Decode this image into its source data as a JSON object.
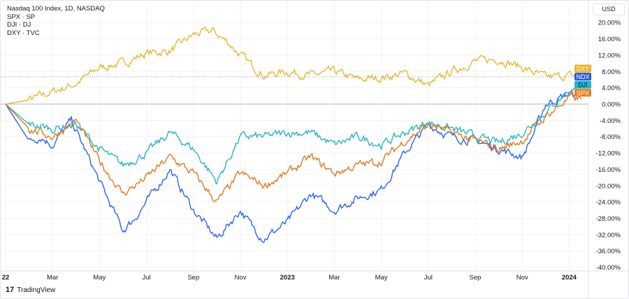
{
  "legend": [
    "Nasdaq 100 Index, 1D, NASDAQ",
    "SPX · SP",
    "DJI · DJ",
    "DXY · TVC"
  ],
  "currency_button": "USD",
  "branding": "TradingView",
  "chart_data": {
    "type": "line",
    "title": "Nasdaq 100 Index, 1D, NASDAQ",
    "x_ticks": [
      {
        "m": 0,
        "label": "22"
      },
      {
        "m": 2,
        "label": "Mar"
      },
      {
        "m": 4,
        "label": "May"
      },
      {
        "m": 6,
        "label": "Jul"
      },
      {
        "m": 8,
        "label": "Sep"
      },
      {
        "m": 10,
        "label": "Nov"
      },
      {
        "m": 12,
        "label": "2023"
      },
      {
        "m": 14,
        "label": "Mar"
      },
      {
        "m": 16,
        "label": "May"
      },
      {
        "m": 18,
        "label": "Jul"
      },
      {
        "m": 20,
        "label": "Sep"
      },
      {
        "m": 22,
        "label": "Nov"
      },
      {
        "m": 24,
        "label": "2024"
      }
    ],
    "y_ticks": [
      "20.00%",
      "16.00%",
      "12.00%",
      "8.00%",
      "4.00%",
      "0.00%",
      "-4.00%",
      "-8.00%",
      "-12.00%",
      "-16.00%",
      "-20.00%",
      "-24.00%",
      "-28.00%",
      "-32.00%",
      "-36.00%",
      "-40.00%"
    ],
    "ylim": [
      -40,
      20
    ],
    "x_unit": "months since Jan 2022",
    "series": [
      {
        "name": "DXY",
        "color": "#e8b830",
        "label_bg": "#f0b323",
        "points": [
          [
            0,
            0
          ],
          [
            1,
            1
          ],
          [
            2,
            3
          ],
          [
            3,
            5
          ],
          [
            4,
            9
          ],
          [
            5,
            10
          ],
          [
            6,
            12.5
          ],
          [
            7,
            13
          ],
          [
            8,
            17
          ],
          [
            8.8,
            18
          ],
          [
            9.5,
            15
          ],
          [
            10,
            12
          ],
          [
            11,
            7
          ],
          [
            12,
            8
          ],
          [
            13,
            7
          ],
          [
            14,
            8
          ],
          [
            15,
            6
          ],
          [
            16,
            6.5
          ],
          [
            17,
            7.5
          ],
          [
            18,
            4.5
          ],
          [
            19,
            8
          ],
          [
            20,
            10.5
          ],
          [
            21,
            11
          ],
          [
            22,
            9
          ],
          [
            23,
            6.5
          ],
          [
            24,
            7
          ],
          [
            24.5,
            6.7
          ]
        ]
      },
      {
        "name": "NDX",
        "color": "#2962ff",
        "label_bg": "#2a5bd7",
        "points": [
          [
            0,
            0
          ],
          [
            1,
            -9
          ],
          [
            1.5,
            -8
          ],
          [
            2,
            -10
          ],
          [
            2.8,
            -4
          ],
          [
            4,
            -19
          ],
          [
            5,
            -31
          ],
          [
            5.5,
            -28
          ],
          [
            6,
            -24
          ],
          [
            7,
            -16
          ],
          [
            8,
            -26
          ],
          [
            9,
            -33
          ],
          [
            10,
            -26
          ],
          [
            10.5,
            -30
          ],
          [
            11,
            -33
          ],
          [
            12,
            -29
          ],
          [
            13,
            -22
          ],
          [
            14,
            -26
          ],
          [
            15,
            -23
          ],
          [
            16,
            -21
          ],
          [
            17,
            -12
          ],
          [
            18,
            -5
          ],
          [
            19,
            -8
          ],
          [
            20,
            -9
          ],
          [
            21,
            -11
          ],
          [
            22,
            -13
          ],
          [
            22.5,
            -7
          ],
          [
            23,
            0
          ],
          [
            24,
            2.5
          ],
          [
            24.5,
            2
          ]
        ]
      },
      {
        "name": "DJI",
        "color": "#26b5c4",
        "label_bg": "#22b5c9",
        "points": [
          [
            0,
            0
          ],
          [
            1,
            -5
          ],
          [
            2,
            -6
          ],
          [
            3,
            -5
          ],
          [
            4,
            -11
          ],
          [
            5,
            -15
          ],
          [
            6,
            -12
          ],
          [
            7,
            -7
          ],
          [
            8,
            -11
          ],
          [
            9,
            -19
          ],
          [
            10,
            -8
          ],
          [
            11,
            -8
          ],
          [
            12,
            -7
          ],
          [
            13,
            -7
          ],
          [
            14,
            -10
          ],
          [
            15,
            -8
          ],
          [
            16,
            -10
          ],
          [
            17,
            -7
          ],
          [
            18,
            -4.5
          ],
          [
            19,
            -6
          ],
          [
            20,
            -8
          ],
          [
            21,
            -9.5
          ],
          [
            22,
            -7
          ],
          [
            23,
            -2
          ],
          [
            24,
            3.5
          ],
          [
            24.5,
            3
          ]
        ]
      },
      {
        "name": "SPX",
        "color": "#e07b1a",
        "label_bg": "#f07c1b",
        "points": [
          [
            0,
            0
          ],
          [
            1,
            -6
          ],
          [
            2,
            -8
          ],
          [
            3,
            -4
          ],
          [
            4,
            -14
          ],
          [
            5,
            -22
          ],
          [
            6,
            -18
          ],
          [
            7,
            -13
          ],
          [
            8,
            -17
          ],
          [
            9,
            -24
          ],
          [
            10,
            -17
          ],
          [
            11,
            -20
          ],
          [
            12,
            -17
          ],
          [
            13,
            -13
          ],
          [
            14,
            -17
          ],
          [
            15,
            -15
          ],
          [
            16,
            -14
          ],
          [
            17,
            -9
          ],
          [
            18,
            -5
          ],
          [
            19,
            -7
          ],
          [
            20,
            -9
          ],
          [
            21,
            -11
          ],
          [
            22,
            -9
          ],
          [
            23,
            -3
          ],
          [
            24,
            1.5
          ],
          [
            24.5,
            1.2
          ]
        ]
      }
    ],
    "grid": true,
    "legend_placement": "top-left"
  }
}
